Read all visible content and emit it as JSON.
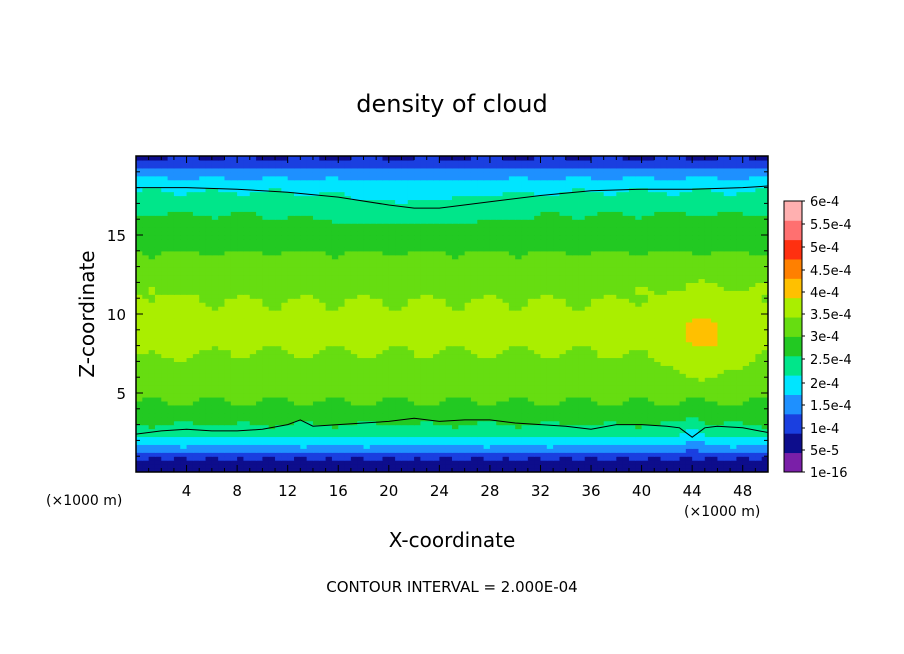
{
  "chart_data": {
    "type": "heatmap",
    "title": "density of cloud",
    "xlabel": "X-coordinate",
    "ylabel": "Z-coordinate",
    "x_unit": "(×1000 m)",
    "y_unit": "(×1000 m)",
    "xlim": [
      0,
      50
    ],
    "ylim": [
      0,
      20
    ],
    "x_ticks": [
      4,
      8,
      12,
      16,
      20,
      24,
      28,
      32,
      36,
      40,
      44,
      48
    ],
    "y_ticks": [
      5,
      10,
      15
    ],
    "footer": "CONTOUR INTERVAL = 2.000E-04",
    "colorbar": {
      "labels": [
        "1e-16",
        "5e-5",
        "1e-4",
        "1.5e-4",
        "2e-4",
        "2.5e-4",
        "3e-4",
        "3.5e-4",
        "4e-4",
        "4.5e-4",
        "5e-4",
        "5.5e-4",
        "6e-4"
      ],
      "values": [
        0,
        5e-05,
        0.0001,
        0.00015,
        0.0002,
        0.00025,
        0.0003,
        0.00035,
        0.0004,
        0.00045,
        0.0005,
        0.00055,
        0.0006
      ],
      "colors": [
        "#7a1fa8",
        "#0d0d8c",
        "#1a3fe0",
        "#1e90ff",
        "#00e5ff",
        "#00e68a",
        "#22c922",
        "#66dd11",
        "#aaee00",
        "#ffc000",
        "#ff8000",
        "#ff3010",
        "#ff7070",
        "#ffb0b0"
      ]
    },
    "vertical_profile": {
      "z": [
        0.0,
        0.3,
        0.6,
        1.0,
        1.5,
        2.0,
        2.5,
        3.0,
        3.5,
        4.0,
        5.0,
        6.0,
        7.0,
        8.0,
        9.0,
        10.0,
        11.0,
        12.0,
        13.0,
        14.0,
        15.0,
        16.0,
        17.0,
        17.5,
        18.0,
        18.5,
        19.0,
        19.5,
        20.0
      ],
      "density": [
        0.0,
        1e-05,
        4e-05,
        8e-05,
        0.00013,
        0.00018,
        0.00022,
        0.00025,
        0.00027,
        0.00029,
        0.00031,
        0.00033,
        0.00034,
        0.000355,
        0.00036,
        0.00036,
        0.00035,
        0.00034,
        0.00032,
        0.0003,
        0.00028,
        0.00026,
        0.00023,
        0.00021,
        0.00019,
        0.00016,
        0.00012,
        8e-05,
        4e-05
      ]
    },
    "contour_lines": [
      {
        "value": 0.0002,
        "points": [
          [
            0,
            2.4
          ],
          [
            2,
            2.6
          ],
          [
            4,
            2.7
          ],
          [
            6,
            2.6
          ],
          [
            8,
            2.6
          ],
          [
            10,
            2.7
          ],
          [
            12,
            3.0
          ],
          [
            13,
            3.3
          ],
          [
            14,
            2.9
          ],
          [
            16,
            3.0
          ],
          [
            18,
            3.1
          ],
          [
            20,
            3.2
          ],
          [
            22,
            3.4
          ],
          [
            24,
            3.2
          ],
          [
            26,
            3.3
          ],
          [
            28,
            3.3
          ],
          [
            30,
            3.1
          ],
          [
            32,
            3.0
          ],
          [
            34,
            2.9
          ],
          [
            36,
            2.7
          ],
          [
            38,
            3.0
          ],
          [
            40,
            3.0
          ],
          [
            42,
            2.9
          ],
          [
            43,
            2.8
          ],
          [
            44,
            2.2
          ],
          [
            45,
            2.8
          ],
          [
            46,
            2.9
          ],
          [
            48,
            2.8
          ],
          [
            50,
            2.5
          ]
        ]
      },
      {
        "value": 0.0002,
        "points": [
          [
            0,
            18.0
          ],
          [
            4,
            18.0
          ],
          [
            8,
            17.9
          ],
          [
            12,
            17.7
          ],
          [
            16,
            17.4
          ],
          [
            20,
            16.9
          ],
          [
            22,
            16.7
          ],
          [
            24,
            16.7
          ],
          [
            28,
            17.1
          ],
          [
            32,
            17.5
          ],
          [
            36,
            17.8
          ],
          [
            40,
            17.9
          ],
          [
            44,
            17.9
          ],
          [
            48,
            18.0
          ],
          [
            50,
            18.1
          ]
        ]
      }
    ]
  }
}
